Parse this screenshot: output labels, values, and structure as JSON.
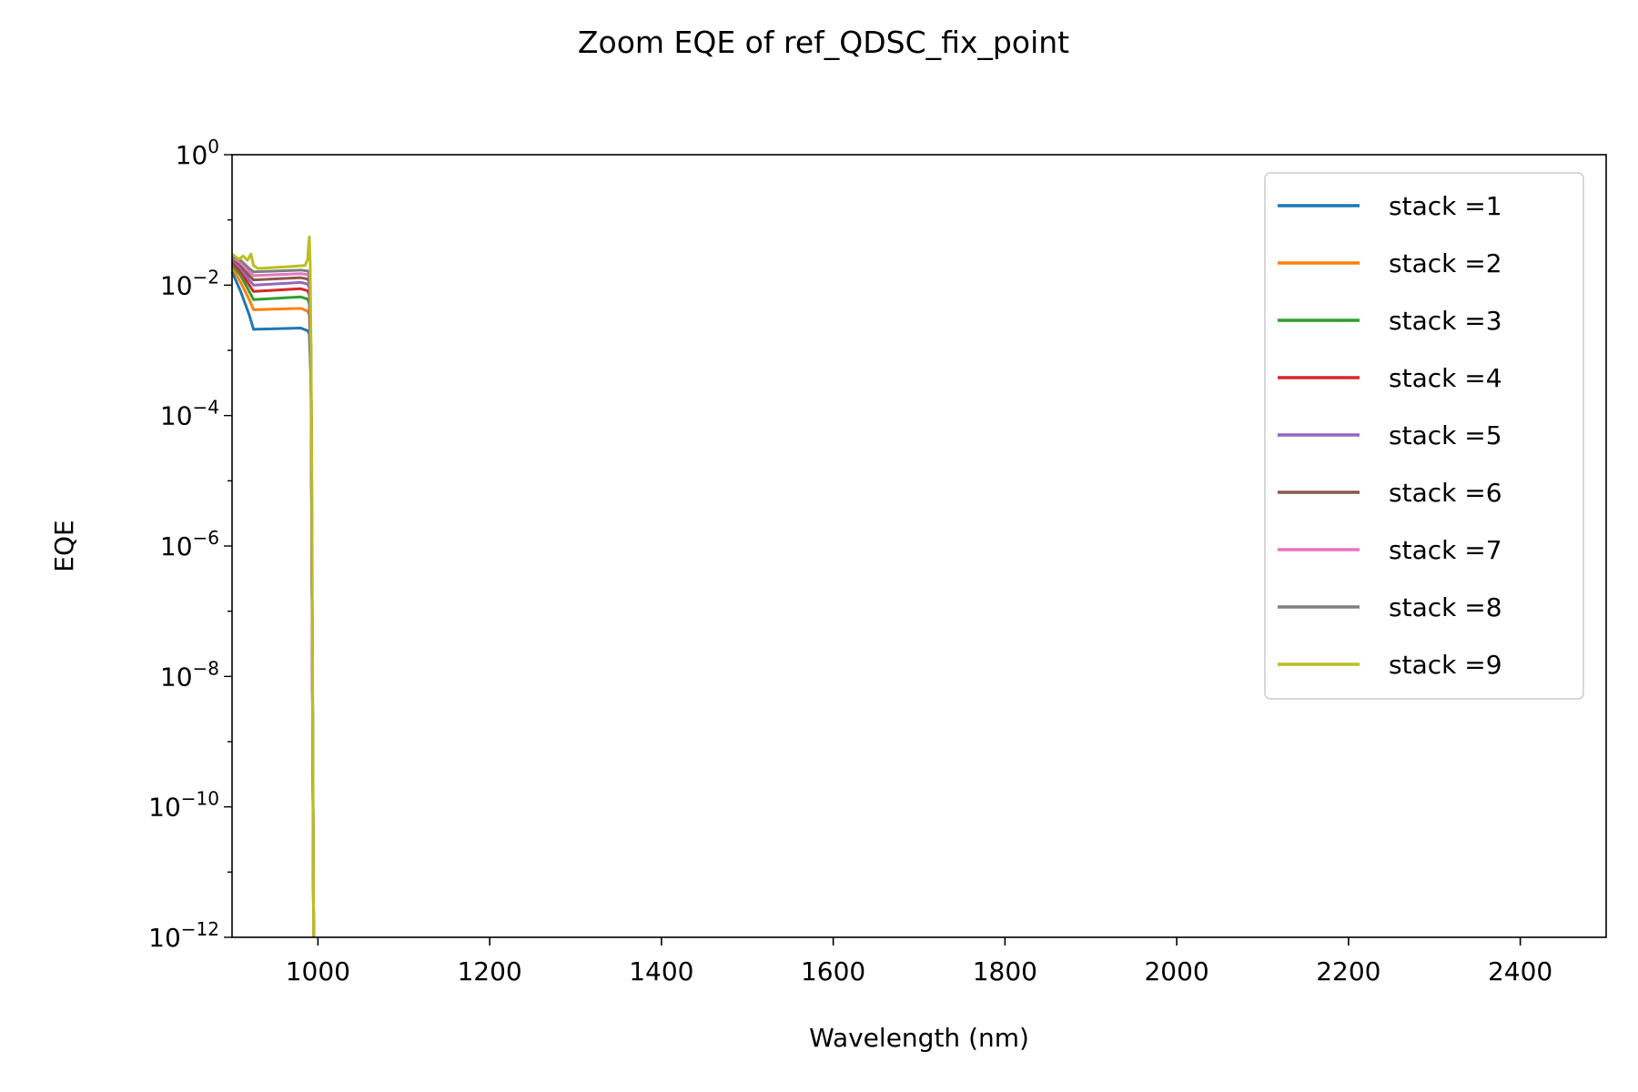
{
  "chart_data": {
    "type": "line",
    "title": "Zoom EQE of ref_QDSC_fix_point",
    "xlabel": "Wavelength (nm)",
    "ylabel": "EQE",
    "xlim": [
      900,
      2500
    ],
    "yscale": "log",
    "ylim": [
      1e-12,
      1
    ],
    "x_ticks": [
      1000,
      1200,
      1400,
      1600,
      1800,
      2000,
      2200,
      2400
    ],
    "y_ticks": [
      {
        "value": 1,
        "base": "10",
        "exp": "0"
      },
      {
        "value": 0.01,
        "base": "10",
        "exp": "−2"
      },
      {
        "value": 0.0001,
        "base": "10",
        "exp": "−4"
      },
      {
        "value": 1e-06,
        "base": "10",
        "exp": "−6"
      },
      {
        "value": 1e-08,
        "base": "10",
        "exp": "−8"
      },
      {
        "value": 1e-10,
        "base": "10",
        "exp": "−10"
      },
      {
        "value": 1e-12,
        "base": "10",
        "exp": "−12"
      }
    ],
    "grid": false,
    "legend_position": "top-right",
    "series": [
      {
        "name": "stack =1",
        "color": "#1f77b4",
        "x": [
          900,
          910,
          920,
          925,
          980,
          988,
          990,
          992,
          995
        ],
        "y": [
          0.016,
          0.008,
          0.0035,
          0.0021,
          0.0022,
          0.002,
          0.0018,
          0.0003,
          1e-12
        ]
      },
      {
        "name": "stack =2",
        "color": "#ff7f0e",
        "x": [
          900,
          910,
          920,
          925,
          980,
          988,
          990,
          992,
          995
        ],
        "y": [
          0.019,
          0.011,
          0.006,
          0.0042,
          0.0044,
          0.004,
          0.0035,
          0.0004,
          1e-12
        ]
      },
      {
        "name": "stack =3",
        "color": "#2ca02c",
        "x": [
          900,
          910,
          920,
          925,
          980,
          988,
          990,
          992,
          995
        ],
        "y": [
          0.021,
          0.014,
          0.008,
          0.006,
          0.0066,
          0.0061,
          0.0052,
          0.0005,
          1e-12
        ]
      },
      {
        "name": "stack =4",
        "color": "#d62728",
        "x": [
          900,
          910,
          920,
          925,
          980,
          988,
          990,
          992,
          995
        ],
        "y": [
          0.023,
          0.016,
          0.01,
          0.008,
          0.0088,
          0.0082,
          0.007,
          0.0006,
          1e-12
        ]
      },
      {
        "name": "stack =5",
        "color": "#9467bd",
        "x": [
          900,
          910,
          920,
          925,
          980,
          988,
          990,
          992,
          995
        ],
        "y": [
          0.025,
          0.018,
          0.012,
          0.01,
          0.011,
          0.0104,
          0.009,
          0.0007,
          1e-12
        ]
      },
      {
        "name": "stack =6",
        "color": "#8c564b",
        "x": [
          900,
          910,
          920,
          925,
          980,
          988,
          990,
          992,
          995
        ],
        "y": [
          0.026,
          0.02,
          0.014,
          0.012,
          0.013,
          0.0124,
          0.011,
          0.0008,
          1e-12
        ]
      },
      {
        "name": "stack =7",
        "color": "#e377c2",
        "x": [
          900,
          910,
          920,
          925,
          980,
          988,
          990,
          992,
          995
        ],
        "y": [
          0.027,
          0.022,
          0.016,
          0.014,
          0.015,
          0.0145,
          0.013,
          0.0009,
          1e-12
        ]
      },
      {
        "name": "stack =8",
        "color": "#7f7f7f",
        "x": [
          900,
          910,
          920,
          925,
          980,
          988,
          990,
          992,
          995
        ],
        "y": [
          0.028,
          0.024,
          0.018,
          0.016,
          0.017,
          0.0165,
          0.015,
          0.001,
          1e-12
        ]
      },
      {
        "name": "stack =9",
        "color": "#bcbd22",
        "x": [
          900,
          908,
          913,
          918,
          922,
          925,
          930,
          960,
          985,
          988,
          989,
          990,
          991,
          992,
          993,
          995
        ],
        "y": [
          0.03,
          0.025,
          0.028,
          0.024,
          0.03,
          0.02,
          0.018,
          0.019,
          0.02,
          0.025,
          0.04,
          0.055,
          0.02,
          0.001,
          1e-05,
          1e-12
        ]
      }
    ]
  }
}
